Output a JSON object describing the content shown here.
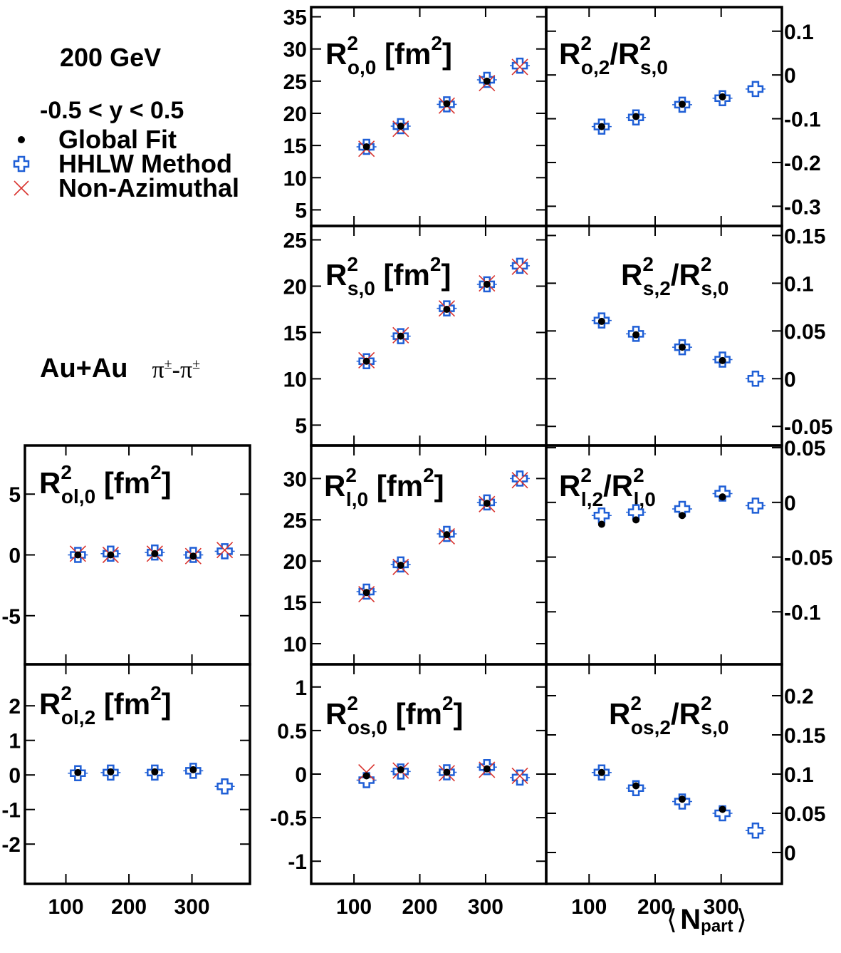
{
  "header": {
    "energy": "200 GeV",
    "rapidity": "-0.5 < y < 0.5",
    "system": "Au+Au",
    "pair_a": "π",
    "pair_sup": "±",
    "pair_dash": "-"
  },
  "legend": [
    {
      "key": "global",
      "label": "Global Fit",
      "color": "#000000"
    },
    {
      "key": "hhlw",
      "label": "HHLW Method",
      "color": "#1f5fd6"
    },
    {
      "key": "nonaz",
      "label": "Non-Azimuthal",
      "color": "#d9332e"
    }
  ],
  "xaxis": {
    "label_main": "N",
    "label_sub": "part",
    "bracket_left": "⟨",
    "bracket_right": "⟩",
    "ticks": [
      "100",
      "200",
      "300"
    ]
  },
  "chart_data": [
    {
      "type": "scatter",
      "panel": "ro0",
      "title": "R², o,0 [fm²]",
      "title_parts": {
        "base": "R",
        "sup": "2",
        "sub": "o,0",
        "unit_base": "fm",
        "unit_sup": "2",
        "unit": " [fm²]"
      },
      "ylim": [
        2.5,
        36.5
      ],
      "yticks": [
        "5",
        "10",
        "15",
        "20",
        "25",
        "30",
        "35"
      ],
      "x": [
        119,
        171,
        241,
        302,
        352
      ],
      "series": [
        {
          "name": "Global Fit",
          "values": [
            14.8,
            18.0,
            21.5,
            25.0,
            null
          ]
        },
        {
          "name": "HHLW Method",
          "values": [
            14.8,
            18.0,
            21.4,
            25.2,
            27.4
          ]
        },
        {
          "name": "Non-Azimuthal",
          "values": [
            14.5,
            17.6,
            21.2,
            24.7,
            27.2
          ]
        }
      ]
    },
    {
      "type": "scatter",
      "panel": "ro2",
      "title": "R²o,2/R²s,0",
      "title_parts": {
        "base": "R",
        "sup": "2",
        "sub": "o,2",
        "base2": "R",
        "sup2": "2",
        "sub2": "s,0"
      },
      "ylim": [
        -0.345,
        0.155
      ],
      "yticks": [
        "0.1",
        "0",
        "-0.1",
        "-0.2",
        "-0.3"
      ],
      "ytick_values": [
        0.1,
        0,
        -0.1,
        -0.2,
        -0.3
      ],
      "x": [
        119,
        171,
        241,
        302,
        352
      ],
      "series": [
        {
          "name": "Global Fit",
          "values": [
            -0.118,
            -0.095,
            -0.067,
            -0.05,
            null
          ]
        },
        {
          "name": "HHLW Method",
          "values": [
            -0.118,
            -0.097,
            -0.068,
            -0.053,
            -0.032
          ]
        }
      ]
    },
    {
      "type": "scatter",
      "panel": "rs0",
      "title": "R²s,0 [fm²]",
      "title_parts": {
        "base": "R",
        "sup": "2",
        "sub": "s,0",
        "unit_base": "fm",
        "unit_sup": "2",
        "unit": " [fm²]"
      },
      "ylim": [
        2.8,
        26.5
      ],
      "yticks": [
        "5",
        "10",
        "15",
        "20",
        "25"
      ],
      "x": [
        119,
        171,
        241,
        302,
        352
      ],
      "series": [
        {
          "name": "Global Fit",
          "values": [
            11.9,
            14.6,
            17.5,
            20.2,
            null
          ]
        },
        {
          "name": "HHLW Method",
          "values": [
            11.9,
            14.6,
            17.6,
            20.2,
            22.2
          ]
        },
        {
          "name": "Non-Azimuthal",
          "values": [
            12.0,
            14.7,
            17.6,
            20.3,
            22.1
          ]
        }
      ]
    },
    {
      "type": "scatter",
      "panel": "rs2",
      "title": "R²s,2/R²s,0",
      "title_parts": {
        "base": "R",
        "sup": "2",
        "sub": "s,2",
        "base2": "R",
        "sup2": "2",
        "sub2": "s,0"
      },
      "ylim": [
        -0.07,
        0.16
      ],
      "yticks": [
        "0.15",
        "0.1",
        "0.05",
        "0",
        "-0.05"
      ],
      "ytick_values": [
        0.15,
        0.1,
        0.05,
        0,
        -0.05
      ],
      "x": [
        119,
        171,
        241,
        302,
        352
      ],
      "series": [
        {
          "name": "Global Fit",
          "values": [
            0.06,
            0.046,
            0.033,
            0.019,
            null
          ]
        },
        {
          "name": "HHLW Method",
          "values": [
            0.061,
            0.047,
            0.033,
            0.02,
            0.0
          ]
        }
      ]
    },
    {
      "type": "scatter",
      "panel": "rl0",
      "title": "R²l,0 [fm²]",
      "title_parts": {
        "base": "R",
        "sup": "2",
        "sub": "l,0",
        "unit_base": "fm",
        "unit_sup": "2",
        "unit": " [fm²]"
      },
      "ylim": [
        7.5,
        34
      ],
      "yticks": [
        "10",
        "15",
        "20",
        "25",
        "30"
      ],
      "x": [
        119,
        171,
        241,
        302,
        352
      ],
      "series": [
        {
          "name": "Global Fit",
          "values": [
            16.2,
            19.5,
            23.2,
            27.0,
            null
          ]
        },
        {
          "name": "HHLW Method",
          "values": [
            16.3,
            19.6,
            23.3,
            27.1,
            30.0
          ]
        },
        {
          "name": "Non-Azimuthal",
          "values": [
            16.0,
            19.3,
            23.0,
            26.9,
            29.8
          ]
        }
      ]
    },
    {
      "type": "scatter",
      "panel": "rl2",
      "title": "R²l,2/R²l,0",
      "title_parts": {
        "base": "R",
        "sup": "2",
        "sub": "l,2",
        "base2": "R",
        "sup2": "2",
        "sub2": "l,0"
      },
      "ylim": [
        -0.148,
        0.052
      ],
      "yticks": [
        "0.05",
        "0",
        "-0.05",
        "-0.1"
      ],
      "ytick_values": [
        0.05,
        0,
        -0.05,
        -0.1
      ],
      "x": [
        119,
        171,
        241,
        302,
        352
      ],
      "series": [
        {
          "name": "Global Fit",
          "values": [
            -0.02,
            -0.016,
            -0.012,
            0.005,
            null
          ]
        },
        {
          "name": "HHLW Method",
          "values": [
            -0.012,
            -0.009,
            -0.006,
            0.008,
            -0.003
          ]
        }
      ]
    },
    {
      "type": "scatter",
      "panel": "rol0",
      "title": "R²ol,0 [fm²]",
      "title_parts": {
        "base": "R",
        "sup": "2",
        "sub": "ol,0",
        "unit_base": "fm",
        "unit_sup": "2",
        "unit": " [fm²]"
      },
      "ylim": [
        -9,
        9
      ],
      "yticks": [
        "5",
        "0",
        "-5"
      ],
      "ytick_values": [
        5,
        0,
        -5
      ],
      "x": [
        119,
        171,
        241,
        302,
        352
      ],
      "series": [
        {
          "name": "Global Fit",
          "values": [
            0.0,
            0.0,
            0.1,
            -0.1,
            null
          ]
        },
        {
          "name": "HHLW Method",
          "values": [
            0.0,
            0.1,
            0.2,
            0.0,
            0.3
          ]
        },
        {
          "name": "Non-Azimuthal",
          "values": [
            0.1,
            0.0,
            0.1,
            -0.1,
            0.4
          ]
        }
      ]
    },
    {
      "type": "scatter",
      "panel": "rol2",
      "title": "R²ol,2 [fm²]",
      "title_parts": {
        "base": "R",
        "sup": "2",
        "sub": "ol,2",
        "unit_base": "fm",
        "unit_sup": "2",
        "unit": " [fm²]"
      },
      "ylim": [
        -3.15,
        3.2
      ],
      "yticks": [
        "2",
        "1",
        "0",
        "-1",
        "-2"
      ],
      "ytick_values": [
        2,
        1,
        0,
        -1,
        -2
      ],
      "x": [
        119,
        171,
        241,
        302,
        352
      ],
      "series": [
        {
          "name": "Global Fit",
          "values": [
            0.07,
            0.09,
            0.09,
            0.15,
            null
          ]
        },
        {
          "name": "HHLW Method",
          "values": [
            0.05,
            0.07,
            0.07,
            0.12,
            -0.33
          ]
        }
      ]
    },
    {
      "type": "scatter",
      "panel": "ros0",
      "title": "R²os,0 [fm²]",
      "title_parts": {
        "base": "R",
        "sup": "2",
        "sub": "os,0",
        "unit_base": "fm",
        "unit_sup": "2",
        "unit": " [fm²]"
      },
      "ylim": [
        -1.26,
        1.26
      ],
      "yticks": [
        "1",
        "0.5",
        "0",
        "-0.5",
        "-1"
      ],
      "ytick_values": [
        1,
        0.5,
        0,
        -0.5,
        -1
      ],
      "x": [
        119,
        171,
        241,
        302,
        352
      ],
      "series": [
        {
          "name": "Global Fit",
          "values": [
            -0.02,
            0.05,
            0.02,
            0.06,
            null
          ]
        },
        {
          "name": "HHLW Method",
          "values": [
            -0.07,
            0.03,
            0.02,
            0.08,
            -0.04
          ]
        },
        {
          "name": "Non-Azimuthal",
          "values": [
            0.02,
            0.04,
            0.01,
            0.05,
            -0.02
          ]
        }
      ]
    },
    {
      "type": "scatter",
      "panel": "ros2",
      "title": "R²os,2/R²s,0",
      "title_parts": {
        "base": "R",
        "sup": "2",
        "sub": "os,2",
        "base2": "R",
        "sup2": "2",
        "sub2": "s,0"
      },
      "ylim": [
        -0.04,
        0.24
      ],
      "yticks": [
        "0.2",
        "0.15",
        "0.1",
        "0.05",
        "0"
      ],
      "ytick_values": [
        0.2,
        0.15,
        0.1,
        0.05,
        0
      ],
      "x": [
        119,
        171,
        241,
        302,
        352
      ],
      "series": [
        {
          "name": "Global Fit",
          "values": [
            0.102,
            0.085,
            0.068,
            0.055,
            null
          ]
        },
        {
          "name": "HHLW Method",
          "values": [
            0.102,
            0.082,
            0.065,
            0.05,
            0.028
          ]
        }
      ]
    }
  ]
}
